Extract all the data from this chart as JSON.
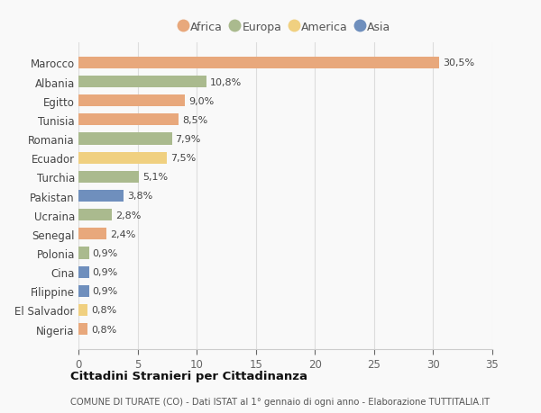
{
  "countries": [
    "Marocco",
    "Albania",
    "Egitto",
    "Tunisia",
    "Romania",
    "Ecuador",
    "Turchia",
    "Pakistan",
    "Ucraina",
    "Senegal",
    "Polonia",
    "Cina",
    "Filippine",
    "El Salvador",
    "Nigeria"
  ],
  "values": [
    30.5,
    10.8,
    9.0,
    8.5,
    7.9,
    7.5,
    5.1,
    3.8,
    2.8,
    2.4,
    0.9,
    0.9,
    0.9,
    0.8,
    0.8
  ],
  "labels": [
    "30,5%",
    "10,8%",
    "9,0%",
    "8,5%",
    "7,9%",
    "7,5%",
    "5,1%",
    "3,8%",
    "2,8%",
    "2,4%",
    "0,9%",
    "0,9%",
    "0,9%",
    "0,8%",
    "0,8%"
  ],
  "continents": [
    "Africa",
    "Europa",
    "Africa",
    "Africa",
    "Europa",
    "America",
    "Europa",
    "Asia",
    "Europa",
    "Africa",
    "Europa",
    "Asia",
    "Asia",
    "America",
    "Africa"
  ],
  "colors": {
    "Africa": "#E8A87C",
    "Europa": "#AABA8E",
    "America": "#F0D080",
    "Asia": "#6F8FBD"
  },
  "legend_order": [
    "Africa",
    "Europa",
    "America",
    "Asia"
  ],
  "title": "Cittadini Stranieri per Cittadinanza",
  "subtitle": "COMUNE DI TURATE (CO) - Dati ISTAT al 1° gennaio di ogni anno - Elaborazione TUTTITALIA.IT",
  "xlim": [
    0,
    35
  ],
  "xticks": [
    0,
    5,
    10,
    15,
    20,
    25,
    30,
    35
  ],
  "background_color": "#f9f9f9",
  "grid_color": "#dddddd",
  "bar_height": 0.62
}
